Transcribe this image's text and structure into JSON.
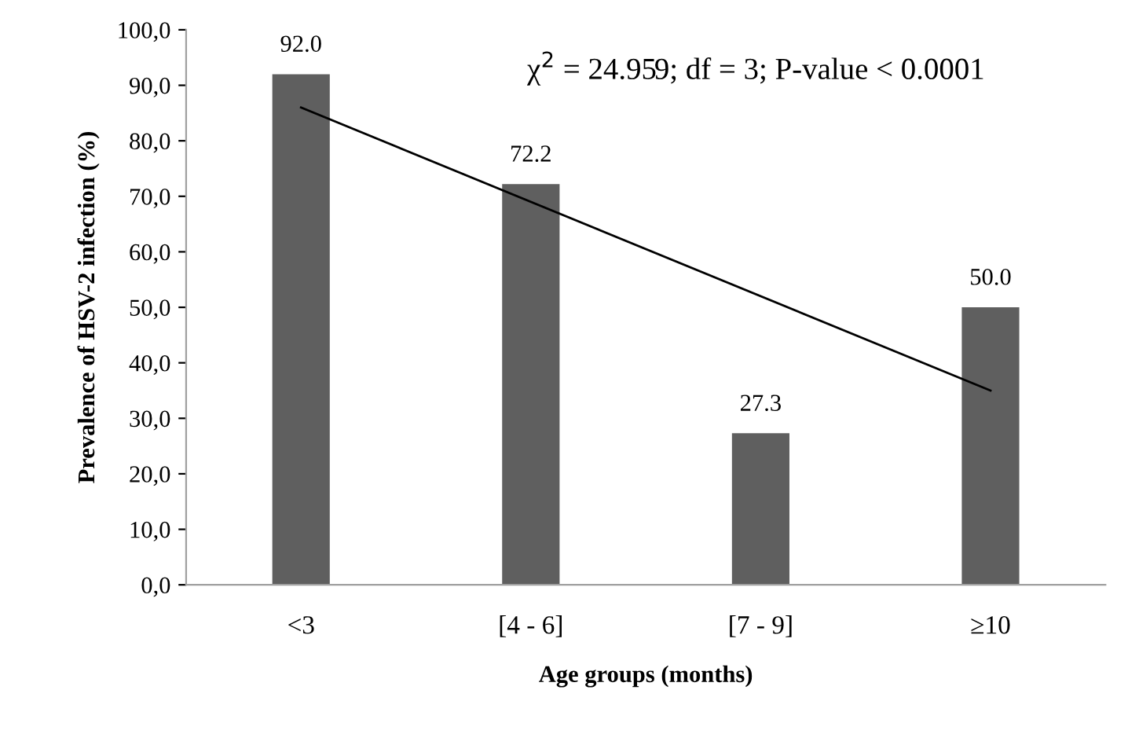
{
  "chart_data": {
    "type": "bar",
    "xlabel": "Age groups (months)",
    "ylabel": "Prevalence of HSV-2 infection (%)",
    "categories": [
      "<3",
      "[4 - 6]",
      "[7 - 9]",
      "≥10"
    ],
    "series": [
      {
        "color": "#5f5f5f",
        "values": [
          92.0,
          72.2,
          27.3,
          50.0
        ],
        "value_labels": [
          "92.0",
          "72.2",
          "27.3",
          "50.0"
        ]
      },
      {
        "type": "line",
        "color": "#000000",
        "x": [
          "<3",
          "≥10"
        ],
        "values": [
          86.0,
          35.0
        ]
      }
    ],
    "ylim": [
      0,
      100
    ],
    "yticks": [
      {
        "value": 0,
        "label": "0,0"
      },
      {
        "value": 10,
        "label": "10,0"
      },
      {
        "value": 20,
        "label": "20,0"
      },
      {
        "value": 30,
        "label": "30,0"
      },
      {
        "value": 40,
        "label": "40,0"
      },
      {
        "value": 50,
        "label": "50,0"
      },
      {
        "value": 60,
        "label": "60,0"
      },
      {
        "value": 70,
        "label": "70,0"
      },
      {
        "value": 80,
        "label": "80,0"
      },
      {
        "value": 90,
        "label": "90,0"
      },
      {
        "value": 100,
        "label": "100,0"
      }
    ],
    "annotations": [
      "χ$^{2}$ = 24.959; df = 3; P-value < 0.0001"
    ],
    "grid": false,
    "legend": false,
    "marker": "none",
    "line_style": "solid"
  }
}
